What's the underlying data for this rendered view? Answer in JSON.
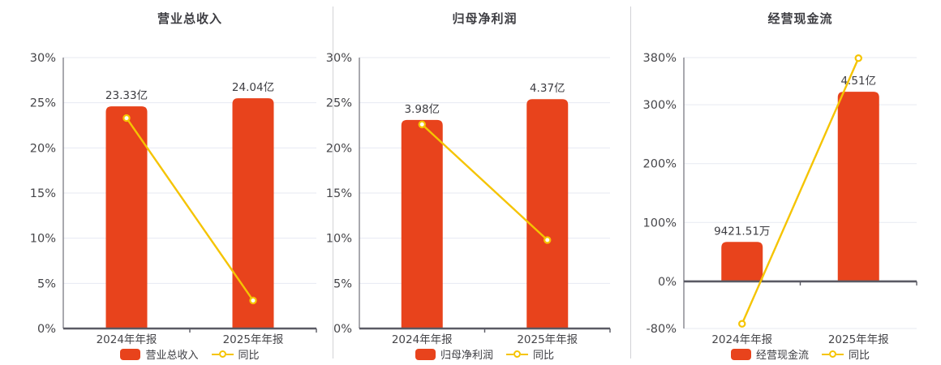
{
  "page": {
    "background": "#ffffff",
    "type": "financial-report-triple-chart"
  },
  "colors": {
    "bar": "#e8431c",
    "line": "#f5c402",
    "marker_fill": "#ffffff",
    "grid": "#e7eaf2",
    "baseline": "#5a5a64",
    "y_axis": "#84848c",
    "tick_text": "#46464a",
    "value_text": "#3d3d42",
    "title_text": "#3d3d42",
    "divider": "#d2d2d6"
  },
  "chart_data": [
    {
      "type": "bar",
      "title": "营业总收入",
      "categories": [
        "2024年年报",
        "2025年年报"
      ],
      "bar_series": {
        "name": "营业总收入",
        "display_values": [
          "23.33亿",
          "24.04亿"
        ],
        "axis_pct_equivalent": [
          24.6,
          25.5
        ]
      },
      "line_series": {
        "name": "同比",
        "values_pct": [
          23.3,
          3.1
        ]
      },
      "y_axis": {
        "min": 0,
        "max": 30,
        "ticks": [
          0,
          5,
          10,
          15,
          20,
          25,
          30
        ],
        "tick_labels": [
          "0%",
          "5%",
          "10%",
          "15%",
          "20%",
          "25%",
          "30%"
        ]
      },
      "legend": {
        "bar_label": "营业总收入",
        "line_label": "同比"
      },
      "grid_on": true,
      "legend_position": "bottom"
    },
    {
      "type": "bar",
      "title": "归母净利润",
      "categories": [
        "2024年年报",
        "2025年年报"
      ],
      "bar_series": {
        "name": "归母净利润",
        "display_values": [
          "3.98亿",
          "4.37亿"
        ],
        "axis_pct_equivalent": [
          23.1,
          25.4
        ]
      },
      "line_series": {
        "name": "同比",
        "values_pct": [
          22.6,
          9.8
        ]
      },
      "y_axis": {
        "min": 0,
        "max": 30,
        "ticks": [
          0,
          5,
          10,
          15,
          20,
          25,
          30
        ],
        "tick_labels": [
          "0%",
          "5%",
          "10%",
          "15%",
          "20%",
          "25%",
          "30%"
        ]
      },
      "legend": {
        "bar_label": "归母净利润",
        "line_label": "同比"
      },
      "grid_on": true,
      "legend_position": "bottom"
    },
    {
      "type": "bar",
      "title": "经营现金流",
      "categories": [
        "2024年年报",
        "2025年年报"
      ],
      "bar_series": {
        "name": "经营现金流",
        "display_values": [
          "9421.51万",
          "4.51亿"
        ],
        "axis_pct_equivalent": [
          67,
          322
        ]
      },
      "line_series": {
        "name": "同比",
        "values_pct": [
          -72,
          379
        ]
      },
      "y_axis": {
        "min": -80,
        "max": 380,
        "ticks": [
          -80,
          0,
          100,
          200,
          300,
          380
        ],
        "tick_labels": [
          "-80%",
          "0%",
          "100%",
          "200%",
          "300%",
          "380%"
        ]
      },
      "legend": {
        "bar_label": "经营现金流",
        "line_label": "同比"
      },
      "grid_on": true,
      "legend_position": "bottom"
    }
  ]
}
